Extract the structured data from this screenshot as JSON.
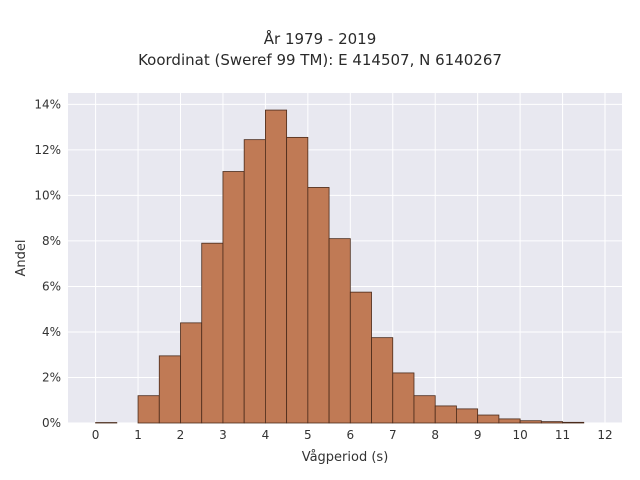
{
  "chart_data": {
    "type": "bar",
    "title_line1": "År 1979 - 2019",
    "title_line2": "Koordinat (Sweref 99 TM): E 414507, N 6140267",
    "xlabel": "Vågperiod (s)",
    "ylabel": "Andel",
    "bin_width": 0.5,
    "bin_starts": [
      0,
      0.5,
      1,
      1.5,
      2,
      2.5,
      3,
      3.5,
      4,
      4.5,
      5,
      5.5,
      6,
      6.5,
      7,
      7.5,
      8,
      8.5,
      9,
      9.5,
      10,
      10.5,
      11,
      11.5
    ],
    "values": [
      0.02,
      0.0,
      1.2,
      2.95,
      4.4,
      7.9,
      11.05,
      12.45,
      13.75,
      12.55,
      10.35,
      8.1,
      5.75,
      3.75,
      2.2,
      1.2,
      0.75,
      0.62,
      0.35,
      0.18,
      0.1,
      0.06,
      0.03,
      0.0
    ],
    "xlim": [
      -0.65,
      12.4
    ],
    "ylim": [
      0,
      14.5
    ],
    "xticks": [
      0,
      1,
      2,
      3,
      4,
      5,
      6,
      7,
      8,
      9,
      10,
      11,
      12
    ],
    "xtick_labels": [
      "0",
      "1",
      "2",
      "3",
      "4",
      "5",
      "6",
      "7",
      "8",
      "9",
      "10",
      "11",
      "12"
    ],
    "yticks": [
      0,
      2,
      4,
      6,
      8,
      10,
      12,
      14
    ],
    "ytick_labels": [
      "0%",
      "2%",
      "4%",
      "6%",
      "8%",
      "10%",
      "12%",
      "14%"
    ],
    "grid": true,
    "colors": {
      "bar_fill": "#c07a55",
      "bar_edge": "#4a2a1a",
      "plot_bg": "#e8e8f0",
      "grid": "#ffffff"
    }
  }
}
